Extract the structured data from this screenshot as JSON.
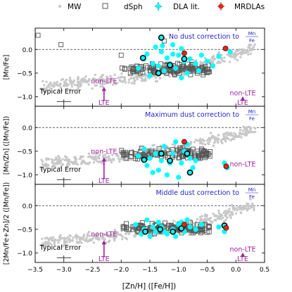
{
  "legend": {
    "entries": [
      {
        "label": "MW",
        "marker": "dot-gray"
      },
      {
        "label": "dSph",
        "marker": "open-square"
      },
      {
        "label": "DLA lit.",
        "marker": "cyan-dot-errorbar"
      },
      {
        "label": "MRDLAs",
        "marker": "red-dot-errorbar"
      }
    ]
  },
  "colors": {
    "mw": "#c8c8c8",
    "dsph": "#555555",
    "dla": "#00ffff",
    "mrdla": "#e8231a",
    "annotation_nonlte": "#a020a0",
    "panel_title": "#1f1fd0"
  },
  "chart_data": {
    "type": "scatter",
    "xlabel": "[Zn/H] ([Fe/H])",
    "xlim": [
      -3.5,
      0.5
    ],
    "x_ticks": [
      -3.5,
      -3.0,
      -2.5,
      -2.0,
      -1.5,
      -1.0,
      -0.5,
      0.0,
      0.5
    ],
    "x_tick_labels": [
      "−3.5",
      "−3.0",
      "−2.5",
      "−2.0",
      "−1.5",
      "−1.0",
      "−0.5",
      "0.0",
      "0.5"
    ],
    "ylim": [
      -1.2,
      0.45
    ],
    "y_ticks": [
      0.0,
      -0.5,
      -1.0
    ],
    "y_tick_labels": [
      "0.0",
      "−0.5",
      "−1.0"
    ],
    "grid": "horizontal dashed at 0",
    "panels": [
      {
        "title": "No dust correction to",
        "title_fraction": [
          "Mn",
          "Fe"
        ],
        "ylabel": "[Mn/Fe]",
        "typical_error_label": "Typical Error",
        "annotations": [
          {
            "text": "non-LTE",
            "x": -2.3,
            "y": -0.72
          },
          {
            "text": "LTE",
            "x": -2.3,
            "y": -1.17
          },
          {
            "text": "non-LTE",
            "x": 0.12,
            "y": -0.97
          },
          {
            "text": "LTE",
            "x": 0.12,
            "y": -1.17
          }
        ],
        "arrows": [
          {
            "x": -2.3,
            "from": -1.09,
            "to": -0.82
          },
          {
            "x": 0.12,
            "from": -1.09,
            "to": -1.02
          }
        ],
        "dla": [
          [
            -1.4,
            0.05
          ],
          [
            -1.28,
            0.08
          ],
          [
            -1.1,
            0.1
          ],
          [
            -0.95,
            0.02
          ],
          [
            -1.55,
            -0.1
          ],
          [
            -1.6,
            -0.2
          ],
          [
            -1.3,
            -0.05
          ],
          [
            -1.2,
            -0.18
          ],
          [
            -1.0,
            -0.12
          ],
          [
            -0.9,
            -0.25
          ],
          [
            -0.8,
            -0.2
          ],
          [
            -0.7,
            -0.3
          ],
          [
            -0.6,
            -0.12
          ],
          [
            -1.45,
            -0.3
          ],
          [
            -1.35,
            -0.35
          ],
          [
            -1.15,
            -0.3
          ],
          [
            -0.5,
            -0.25
          ],
          [
            -0.4,
            -0.35
          ],
          [
            -0.3,
            -0.15
          ],
          [
            -0.1,
            -0.05
          ],
          [
            -1.7,
            -0.4
          ],
          [
            -1.25,
            -0.45
          ],
          [
            -1.05,
            -0.4
          ],
          [
            -0.85,
            -0.5
          ],
          [
            -1.5,
            -0.55
          ],
          [
            -0.95,
            -0.6
          ],
          [
            -1.1,
            -0.1
          ],
          [
            -0.65,
            -0.45
          ]
        ],
        "dla_outlined": [
          [
            -1.3,
            0.25
          ],
          [
            -1.62,
            -0.18
          ],
          [
            -1.15,
            -0.33
          ],
          [
            -1.35,
            -0.5
          ],
          [
            -0.9,
            -0.2
          ]
        ],
        "mrdla": [
          [
            -0.9,
            -0.08
          ],
          [
            -0.18,
            0.02
          ]
        ]
      },
      {
        "title": "Maximum dust correction to",
        "title_fraction": [
          "Mn",
          "Fe"
        ],
        "ylabel": "[Mn/Zn] ([Mn/Fe])",
        "typical_error_label": "Typical Error",
        "annotations": [
          {
            "text": "non-LTE",
            "x": -2.3,
            "y": -0.55
          },
          {
            "text": "LTE",
            "x": -2.3,
            "y": -1.17
          },
          {
            "text": "non-LTE",
            "x": 0.12,
            "y": -0.82
          }
        ],
        "arrows": [
          {
            "x": -2.3,
            "from": -1.09,
            "to": -0.66
          }
        ],
        "dla": [
          [
            -1.7,
            -0.6
          ],
          [
            -1.55,
            -0.8
          ],
          [
            -1.45,
            -0.95
          ],
          [
            -1.35,
            -0.9
          ],
          [
            -1.2,
            -1.0
          ],
          [
            -1.0,
            -1.05
          ],
          [
            -0.95,
            -0.75
          ],
          [
            -0.8,
            -0.65
          ],
          [
            -0.75,
            -0.85
          ],
          [
            -1.6,
            -0.45
          ],
          [
            -1.4,
            -0.55
          ],
          [
            -1.1,
            -0.55
          ],
          [
            -0.9,
            -0.5
          ],
          [
            -1.25,
            -0.4
          ],
          [
            -1.05,
            -0.3
          ],
          [
            -0.85,
            -0.35
          ],
          [
            -1.3,
            -0.7
          ],
          [
            -0.7,
            -0.7
          ],
          [
            -1.15,
            -0.75
          ],
          [
            -0.2,
            -0.75
          ],
          [
            -0.15,
            -0.85
          ],
          [
            -1.5,
            -0.65
          ]
        ],
        "dla_outlined": [
          [
            -1.6,
            -0.68
          ],
          [
            -1.3,
            -0.55
          ],
          [
            -1.15,
            -0.7
          ],
          [
            -0.85,
            -0.55
          ],
          [
            -0.8,
            -0.95
          ]
        ],
        "mrdla": [
          [
            -0.9,
            -0.3
          ],
          [
            -0.17,
            -0.82
          ]
        ]
      },
      {
        "title": "Middle dust correction to",
        "title_fraction": [
          "Mn",
          "Fe"
        ],
        "ylabel": "[2Mn/Fe+Zn]/2 ([Mn/Fe])",
        "typical_error_label": "Typical Error",
        "annotations": [
          {
            "text": "non-LTE",
            "x": -2.3,
            "y": -0.65
          },
          {
            "text": "LTE",
            "x": -2.3,
            "y": -1.17
          },
          {
            "text": "non-LTE",
            "x": 0.12,
            "y": -0.97
          },
          {
            "text": "LTE",
            "x": 0.12,
            "y": -1.17
          }
        ],
        "arrows": [
          {
            "x": -2.3,
            "from": -1.09,
            "to": -0.76
          },
          {
            "x": 0.12,
            "from": -1.09,
            "to": -1.02
          }
        ],
        "dla": [
          [
            -1.75,
            -0.4
          ],
          [
            -1.6,
            -0.5
          ],
          [
            -1.5,
            -0.65
          ],
          [
            -1.4,
            -0.55
          ],
          [
            -1.3,
            -0.45
          ],
          [
            -1.2,
            -0.6
          ],
          [
            -1.1,
            -0.5
          ],
          [
            -1.0,
            -0.4
          ],
          [
            -0.9,
            -0.55
          ],
          [
            -0.8,
            -0.45
          ],
          [
            -0.7,
            -0.5
          ],
          [
            -1.55,
            -0.3
          ],
          [
            -1.35,
            -0.35
          ],
          [
            -1.25,
            -0.55
          ],
          [
            -1.05,
            -0.65
          ],
          [
            -0.95,
            -0.35
          ],
          [
            -0.85,
            -0.3
          ],
          [
            -1.65,
            -0.6
          ],
          [
            -0.6,
            -0.4
          ],
          [
            -0.3,
            -0.45
          ],
          [
            -0.2,
            -0.55
          ],
          [
            -1.45,
            -0.45
          ]
        ],
        "dla_outlined": [
          [
            -1.58,
            -0.55
          ],
          [
            -1.32,
            -0.5
          ],
          [
            -1.1,
            -0.55
          ],
          [
            -0.95,
            -0.48
          ],
          [
            -0.2,
            -0.42
          ]
        ],
        "mrdla": [
          [
            -0.9,
            -0.4
          ],
          [
            -0.17,
            -0.47
          ]
        ]
      }
    ]
  }
}
